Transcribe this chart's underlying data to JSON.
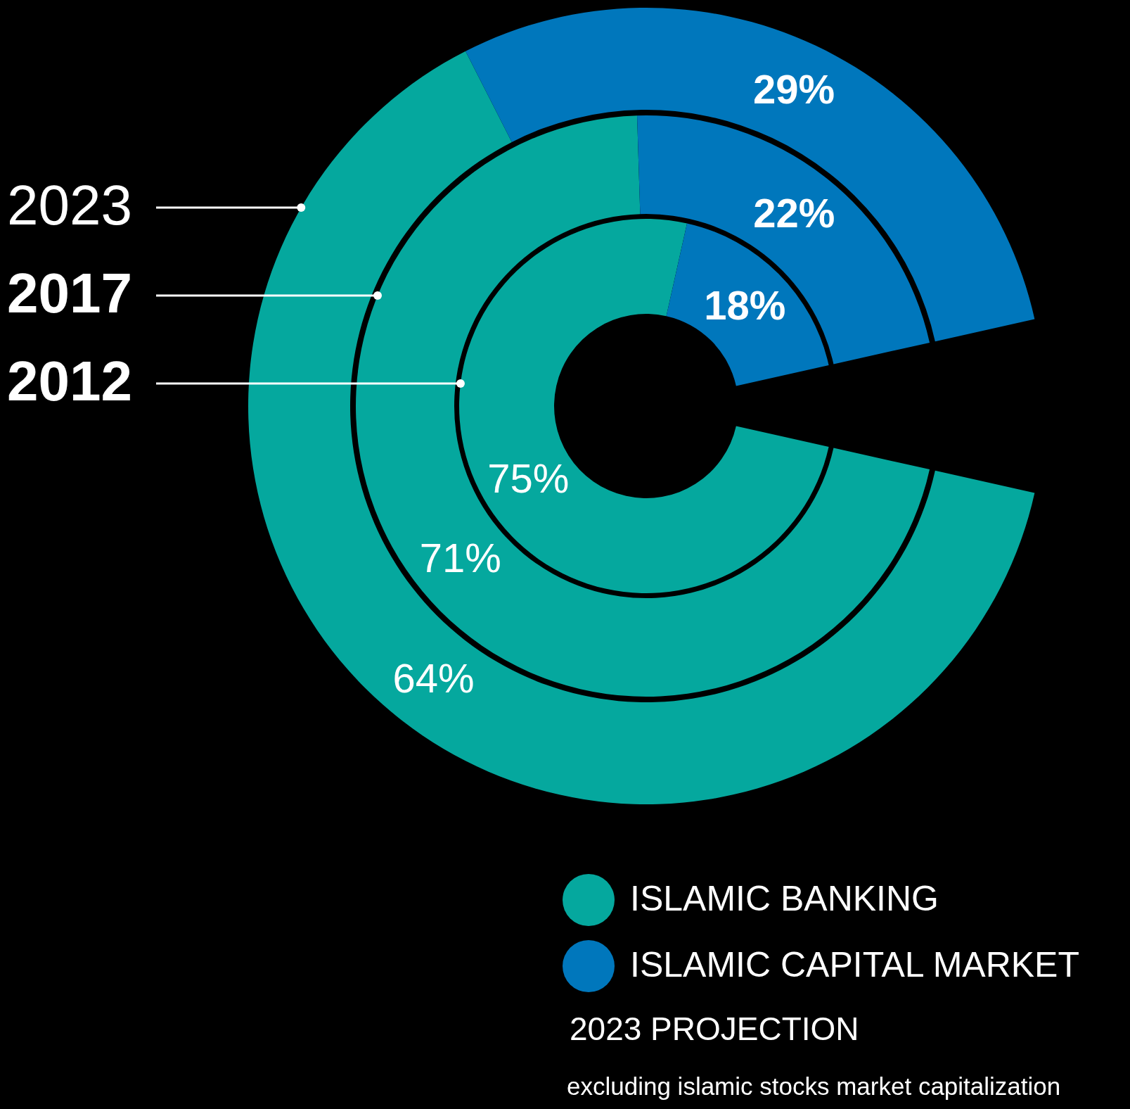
{
  "chart_data": {
    "type": "donut",
    "categories": [
      "ISLAMIC BANKING",
      "ISLAMIC CAPITAL MARKET"
    ],
    "colors": [
      "#05a89e",
      "#0077bc"
    ],
    "series": [
      {
        "name": "2012",
        "values": [
          75,
          18
        ],
        "value_labels": [
          "75%",
          "18%"
        ]
      },
      {
        "name": "2017",
        "values": [
          71,
          22
        ],
        "value_labels": [
          "71%",
          "22%"
        ]
      },
      {
        "name": "2023",
        "values": [
          64,
          29
        ],
        "value_labels": [
          "64%",
          "29%"
        ]
      }
    ],
    "legend": "bottom right",
    "annotations": [
      "2023 PROJECTION",
      "excluding islamic stocks market capitalization"
    ]
  }
}
